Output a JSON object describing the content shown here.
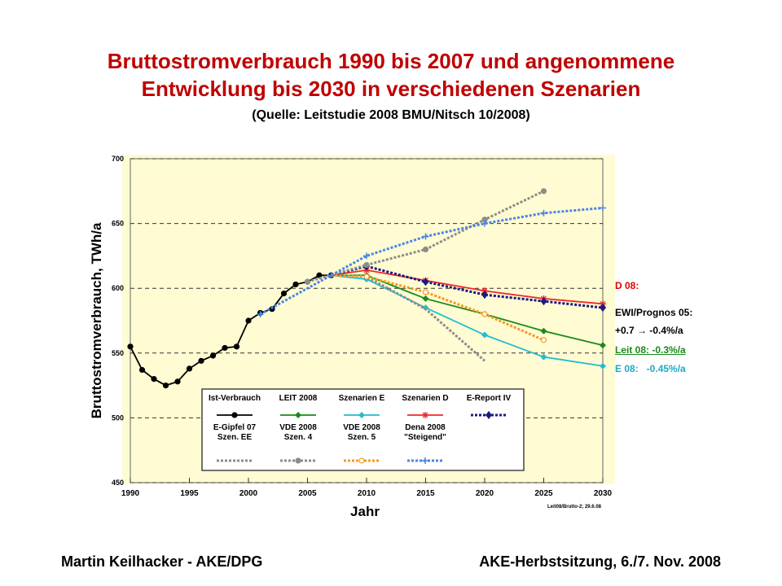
{
  "title": "Bruttostromverbrauch 1990 bis 2007 und angenommene\nEntwicklung bis 2030 in verschiedenen Szenarien",
  "subtitle": "(Quelle: Leitstudie 2008 BMU/Nitsch 10/2008)",
  "footer_left": "Martin Keilhacker - AKE/DPG",
  "footer_right": "AKE-Herbstsitzung, 6./7. Nov. 2008",
  "chart_data": {
    "type": "line",
    "y_label": "Bruttostromverbrauch, TWh/a",
    "x_label": "Jahr",
    "xlim": [
      1990,
      2030
    ],
    "xticks": [
      1990,
      1995,
      2000,
      2005,
      2010,
      2015,
      2020,
      2025,
      2030
    ],
    "ylim": [
      450,
      700
    ],
    "yticks": [
      450,
      500,
      550,
      600,
      650,
      700
    ],
    "grid": true,
    "note": "Leit08/Brutto-2; 29.6.08",
    "annotations": [
      {
        "text": "D 08:",
        "color": "#e00000"
      },
      {
        "text": "EWI/Prognos 05:",
        "color": "#000000"
      },
      {
        "text": "+0.7 → -0.4%/a",
        "color": "#000000"
      },
      {
        "text": "Leit 08: -0.3%/a",
        "color": "#1a8a1a"
      },
      {
        "text": "E 08:   -0.45%/a",
        "color": "#1fa9c4"
      }
    ],
    "series": [
      {
        "name": "Ist-Verbrauch",
        "color": "#000000",
        "dash": false,
        "marker": "circle",
        "x": [
          1990,
          1991,
          1992,
          1993,
          1994,
          1995,
          1996,
          1997,
          1998,
          1999,
          2000,
          2001,
          2002,
          2003,
          2004,
          2005,
          2006,
          2007
        ],
        "values": [
          555,
          537,
          530,
          525,
          528,
          538,
          544,
          548,
          554,
          555,
          575,
          581,
          584,
          596,
          603,
          605,
          610,
          610
        ]
      },
      {
        "name": "LEIT 2008",
        "color": "#1a8a1a",
        "dash": false,
        "marker": "diamond",
        "x": [
          2007,
          2010,
          2015,
          2020,
          2025,
          2030
        ],
        "values": [
          610,
          610,
          592,
          580,
          567,
          556
        ]
      },
      {
        "name": "Szenarien E",
        "color": "#22bcd0",
        "dash": false,
        "marker": "diamond",
        "x": [
          2007,
          2010,
          2015,
          2020,
          2025,
          2030
        ],
        "values": [
          610,
          607,
          585,
          564,
          547,
          540
        ]
      },
      {
        "name": "Szenarien D",
        "color": "#ee2a2a",
        "dash": false,
        "marker": "asterisk",
        "x": [
          2007,
          2010,
          2015,
          2020,
          2025,
          2030
        ],
        "values": [
          610,
          614,
          606,
          598,
          592,
          588
        ]
      },
      {
        "name": "E-Report IV",
        "color": "#1a1a80",
        "dash": true,
        "marker": "star",
        "x": [
          2007,
          2010,
          2015,
          2020,
          2025,
          2030
        ],
        "values": [
          610,
          617,
          605,
          595,
          590,
          585
        ]
      },
      {
        "name": "E-Gipfel 07\nSzen. EE",
        "color": "#8c8c8c",
        "dash": true,
        "marker": "none",
        "x": [
          2007,
          2010,
          2015,
          2020
        ],
        "values": [
          610,
          609,
          584,
          544
        ]
      },
      {
        "name": "VDE 2008\nSzen. 4",
        "color": "#8c8c8c",
        "dash": true,
        "marker": "circle",
        "x": [
          2005,
          2010,
          2015,
          2020,
          2025
        ],
        "values": [
          605,
          618,
          630,
          653,
          675
        ]
      },
      {
        "name": "VDE 2008\nSzen. 5",
        "color": "#f59a23",
        "dash": true,
        "marker": "opencircle",
        "x": [
          2007,
          2010,
          2015,
          2020,
          2025
        ],
        "values": [
          610,
          609,
          597,
          580,
          560
        ]
      },
      {
        "name": "Dena 2008\n\"Steigend\"",
        "color": "#4a86e8",
        "dash": true,
        "marker": "plus",
        "x": [
          2001,
          2007,
          2010,
          2015,
          2020,
          2025,
          2030
        ],
        "values": [
          580,
          610,
          625,
          640,
          650,
          658,
          662
        ]
      }
    ]
  }
}
